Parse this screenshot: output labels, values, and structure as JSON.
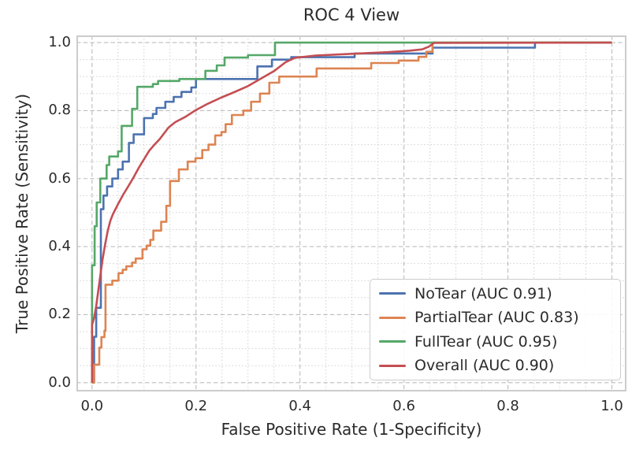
{
  "figure": {
    "title": "ROC 4 View",
    "x_axis": {
      "label": "False Positive Rate (1-Specificity)",
      "tick_labels": [
        "0.0",
        "0.2",
        "0.4",
        "0.6",
        "0.8",
        "1.0"
      ]
    },
    "y_axis": {
      "label": "True Positive Rate (Sensitivity)",
      "tick_labels": [
        "0.0",
        "0.2",
        "0.4",
        "0.6",
        "0.8",
        "1.0"
      ]
    }
  },
  "chart_data": {
    "type": "line",
    "subtype": "roc-curves",
    "title": "ROC 4 View",
    "xlabel": "False Positive Rate (1-Specificity)",
    "ylabel": "True Positive Rate (Sensitivity)",
    "xlim": [
      -0.03,
      1.028
    ],
    "ylim": [
      -0.026,
      1.021
    ],
    "x_ticks": [
      0,
      0.2,
      0.4,
      0.6,
      0.8,
      1.0
    ],
    "y_ticks": [
      0,
      0.2,
      0.4,
      0.6,
      0.8,
      1.0
    ],
    "grid": {
      "major_style": "dashed",
      "minor_style": "dotted",
      "major_step": 0.2,
      "minor_step": 0.05,
      "major_color": "#bdbdbd",
      "minor_color": "#d2d2d2"
    },
    "spine_color": "#cccccc",
    "legend_position": "lower right",
    "series": [
      {
        "name": "NoTear",
        "auc": 0.91,
        "label": "NoTear (AUC 0.91)",
        "color": "#4C72B0",
        "points": [
          [
            0,
            0
          ],
          [
            0.004,
            0
          ],
          [
            0.004,
            0.135
          ],
          [
            0.008,
            0.135
          ],
          [
            0.008,
            0.22
          ],
          [
            0.017,
            0.22
          ],
          [
            0.017,
            0.51
          ],
          [
            0.022,
            0.51
          ],
          [
            0.022,
            0.55
          ],
          [
            0.029,
            0.55
          ],
          [
            0.029,
            0.577
          ],
          [
            0.039,
            0.577
          ],
          [
            0.039,
            0.6
          ],
          [
            0.05,
            0.6
          ],
          [
            0.05,
            0.627
          ],
          [
            0.059,
            0.627
          ],
          [
            0.059,
            0.65
          ],
          [
            0.071,
            0.65
          ],
          [
            0.071,
            0.705
          ],
          [
            0.08,
            0.705
          ],
          [
            0.08,
            0.73
          ],
          [
            0.1,
            0.73
          ],
          [
            0.1,
            0.778
          ],
          [
            0.117,
            0.778
          ],
          [
            0.117,
            0.79
          ],
          [
            0.124,
            0.79
          ],
          [
            0.124,
            0.808
          ],
          [
            0.141,
            0.808
          ],
          [
            0.141,
            0.826
          ],
          [
            0.157,
            0.826
          ],
          [
            0.157,
            0.84
          ],
          [
            0.172,
            0.84
          ],
          [
            0.172,
            0.855
          ],
          [
            0.191,
            0.855
          ],
          [
            0.191,
            0.868
          ],
          [
            0.2,
            0.868
          ],
          [
            0.2,
            0.893
          ],
          [
            0.318,
            0.893
          ],
          [
            0.318,
            0.93
          ],
          [
            0.346,
            0.93
          ],
          [
            0.346,
            0.95
          ],
          [
            0.383,
            0.95
          ],
          [
            0.383,
            0.957
          ],
          [
            0.505,
            0.957
          ],
          [
            0.505,
            0.968
          ],
          [
            0.655,
            0.968
          ],
          [
            0.655,
            0.985
          ],
          [
            0.852,
            0.985
          ],
          [
            0.852,
            1.0
          ],
          [
            1.0,
            1.0
          ]
        ]
      },
      {
        "name": "PartialTear",
        "auc": 0.83,
        "label": "PartialTear (AUC 0.83)",
        "color": "#DD8452",
        "points": [
          [
            0,
            0
          ],
          [
            0.004,
            0
          ],
          [
            0.004,
            0.053
          ],
          [
            0.014,
            0.053
          ],
          [
            0.014,
            0.103
          ],
          [
            0.018,
            0.103
          ],
          [
            0.018,
            0.134
          ],
          [
            0.024,
            0.134
          ],
          [
            0.024,
            0.153
          ],
          [
            0.026,
            0.153
          ],
          [
            0.026,
            0.288
          ],
          [
            0.039,
            0.288
          ],
          [
            0.039,
            0.3
          ],
          [
            0.051,
            0.3
          ],
          [
            0.051,
            0.322
          ],
          [
            0.059,
            0.322
          ],
          [
            0.059,
            0.332
          ],
          [
            0.066,
            0.332
          ],
          [
            0.066,
            0.342
          ],
          [
            0.077,
            0.342
          ],
          [
            0.077,
            0.353
          ],
          [
            0.084,
            0.353
          ],
          [
            0.084,
            0.365
          ],
          [
            0.097,
            0.365
          ],
          [
            0.097,
            0.392
          ],
          [
            0.105,
            0.392
          ],
          [
            0.105,
            0.403
          ],
          [
            0.112,
            0.403
          ],
          [
            0.112,
            0.42
          ],
          [
            0.118,
            0.42
          ],
          [
            0.118,
            0.447
          ],
          [
            0.133,
            0.447
          ],
          [
            0.133,
            0.473
          ],
          [
            0.143,
            0.473
          ],
          [
            0.143,
            0.52
          ],
          [
            0.15,
            0.52
          ],
          [
            0.15,
            0.593
          ],
          [
            0.167,
            0.593
          ],
          [
            0.167,
            0.627
          ],
          [
            0.184,
            0.627
          ],
          [
            0.184,
            0.65
          ],
          [
            0.199,
            0.65
          ],
          [
            0.199,
            0.66
          ],
          [
            0.212,
            0.66
          ],
          [
            0.212,
            0.684
          ],
          [
            0.224,
            0.684
          ],
          [
            0.224,
            0.7
          ],
          [
            0.237,
            0.7
          ],
          [
            0.237,
            0.727
          ],
          [
            0.249,
            0.727
          ],
          [
            0.249,
            0.737
          ],
          [
            0.257,
            0.737
          ],
          [
            0.257,
            0.76
          ],
          [
            0.269,
            0.76
          ],
          [
            0.269,
            0.787
          ],
          [
            0.291,
            0.787
          ],
          [
            0.291,
            0.8
          ],
          [
            0.306,
            0.8
          ],
          [
            0.306,
            0.826
          ],
          [
            0.323,
            0.826
          ],
          [
            0.323,
            0.85
          ],
          [
            0.341,
            0.85
          ],
          [
            0.341,
            0.882
          ],
          [
            0.36,
            0.882
          ],
          [
            0.36,
            0.9
          ],
          [
            0.432,
            0.9
          ],
          [
            0.432,
            0.924
          ],
          [
            0.537,
            0.924
          ],
          [
            0.537,
            0.94
          ],
          [
            0.59,
            0.94
          ],
          [
            0.59,
            0.947
          ],
          [
            0.628,
            0.947
          ],
          [
            0.628,
            0.958
          ],
          [
            0.643,
            0.958
          ],
          [
            0.643,
            0.973
          ],
          [
            0.655,
            0.973
          ],
          [
            0.655,
            1.0
          ],
          [
            1.0,
            1.0
          ]
        ]
      },
      {
        "name": "FullTear",
        "auc": 0.95,
        "label": "FullTear (AUC 0.95)",
        "color": "#55A868",
        "points": [
          [
            0,
            0
          ],
          [
            0,
            0.345
          ],
          [
            0.005,
            0.345
          ],
          [
            0.005,
            0.46
          ],
          [
            0.009,
            0.46
          ],
          [
            0.009,
            0.53
          ],
          [
            0.016,
            0.53
          ],
          [
            0.016,
            0.6
          ],
          [
            0.028,
            0.6
          ],
          [
            0.028,
            0.64
          ],
          [
            0.033,
            0.64
          ],
          [
            0.033,
            0.665
          ],
          [
            0.05,
            0.665
          ],
          [
            0.05,
            0.68
          ],
          [
            0.057,
            0.68
          ],
          [
            0.057,
            0.755
          ],
          [
            0.077,
            0.755
          ],
          [
            0.077,
            0.805
          ],
          [
            0.087,
            0.805
          ],
          [
            0.087,
            0.87
          ],
          [
            0.117,
            0.87
          ],
          [
            0.117,
            0.878
          ],
          [
            0.127,
            0.878
          ],
          [
            0.127,
            0.887
          ],
          [
            0.168,
            0.887
          ],
          [
            0.168,
            0.893
          ],
          [
            0.218,
            0.893
          ],
          [
            0.218,
            0.917
          ],
          [
            0.24,
            0.917
          ],
          [
            0.24,
            0.933
          ],
          [
            0.255,
            0.933
          ],
          [
            0.255,
            0.956
          ],
          [
            0.3,
            0.956
          ],
          [
            0.3,
            0.963
          ],
          [
            0.352,
            0.963
          ],
          [
            0.352,
            1.0
          ],
          [
            1.0,
            1.0
          ]
        ]
      },
      {
        "name": "Overall",
        "auc": 0.9,
        "label": "Overall (AUC 0.90)",
        "color": "#C44E52",
        "points": [
          [
            0,
            0
          ],
          [
            0,
            0.17
          ],
          [
            0.004,
            0.19
          ],
          [
            0.008,
            0.225
          ],
          [
            0.012,
            0.27
          ],
          [
            0.016,
            0.315
          ],
          [
            0.02,
            0.36
          ],
          [
            0.025,
            0.405
          ],
          [
            0.03,
            0.445
          ],
          [
            0.035,
            0.475
          ],
          [
            0.04,
            0.495
          ],
          [
            0.05,
            0.525
          ],
          [
            0.06,
            0.553
          ],
          [
            0.07,
            0.578
          ],
          [
            0.08,
            0.604
          ],
          [
            0.09,
            0.632
          ],
          [
            0.1,
            0.657
          ],
          [
            0.11,
            0.682
          ],
          [
            0.12,
            0.7
          ],
          [
            0.13,
            0.716
          ],
          [
            0.147,
            0.75
          ],
          [
            0.16,
            0.766
          ],
          [
            0.18,
            0.782
          ],
          [
            0.198,
            0.8
          ],
          [
            0.22,
            0.818
          ],
          [
            0.248,
            0.838
          ],
          [
            0.27,
            0.852
          ],
          [
            0.3,
            0.872
          ],
          [
            0.32,
            0.89
          ],
          [
            0.35,
            0.916
          ],
          [
            0.372,
            0.942
          ],
          [
            0.39,
            0.955
          ],
          [
            0.43,
            0.962
          ],
          [
            0.5,
            0.967
          ],
          [
            0.57,
            0.972
          ],
          [
            0.61,
            0.976
          ],
          [
            0.635,
            0.98
          ],
          [
            0.648,
            0.988
          ],
          [
            0.658,
            0.999
          ],
          [
            1.0,
            1.0
          ]
        ]
      }
    ]
  }
}
